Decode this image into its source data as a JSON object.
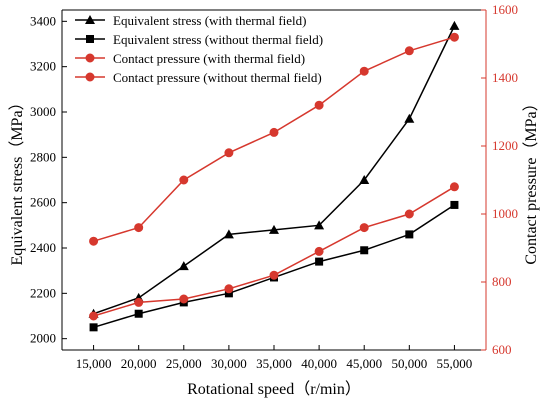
{
  "chart_data": {
    "type": "line",
    "title": "",
    "x": [
      15000,
      20000,
      25000,
      30000,
      35000,
      40000,
      45000,
      50000,
      55000
    ],
    "xtick_labels": [
      "15,000",
      "20,000",
      "25,000",
      "30,000",
      "35,000",
      "40,000",
      "45,000",
      "50,000",
      "55,000"
    ],
    "xlabel": "Rotational speed（r/min）",
    "xlim": [
      11500,
      58500
    ],
    "y_left": {
      "label": "Equivalent stress（MPa）",
      "ylim": [
        1950,
        3450
      ],
      "ticks": [
        2000,
        2200,
        2400,
        2600,
        2800,
        3000,
        3200,
        3400
      ],
      "color": "#000000"
    },
    "y_right": {
      "label": "Contact pressure（MPa）",
      "ylim": [
        600,
        1600
      ],
      "ticks": [
        600,
        800,
        1000,
        1200,
        1400,
        1600
      ],
      "color": "#d6382e"
    },
    "series": [
      {
        "name": "Equivalent stress (with thermal field)",
        "axis": "left",
        "marker": "triangle",
        "color": "#000000",
        "values": [
          2110,
          2180,
          2320,
          2460,
          2480,
          2500,
          2700,
          2970,
          3380
        ]
      },
      {
        "name": "Equivalent stress (without thermal field)",
        "axis": "left",
        "marker": "square",
        "color": "#000000",
        "values": [
          2050,
          2110,
          2160,
          2200,
          2270,
          2340,
          2390,
          2460,
          2590
        ]
      },
      {
        "name": "Contact pressure (with thermal field)",
        "axis": "right",
        "marker": "circle",
        "color": "#d6382e",
        "values": [
          920,
          960,
          1100,
          1180,
          1240,
          1320,
          1420,
          1480,
          1520
        ]
      },
      {
        "name": "Contact pressure (without thermal field)",
        "axis": "right",
        "marker": "circle",
        "color": "#d6382e",
        "values": [
          700,
          740,
          750,
          780,
          820,
          890,
          960,
          1000,
          1080
        ]
      }
    ],
    "legend": "top-left",
    "grid": false
  }
}
